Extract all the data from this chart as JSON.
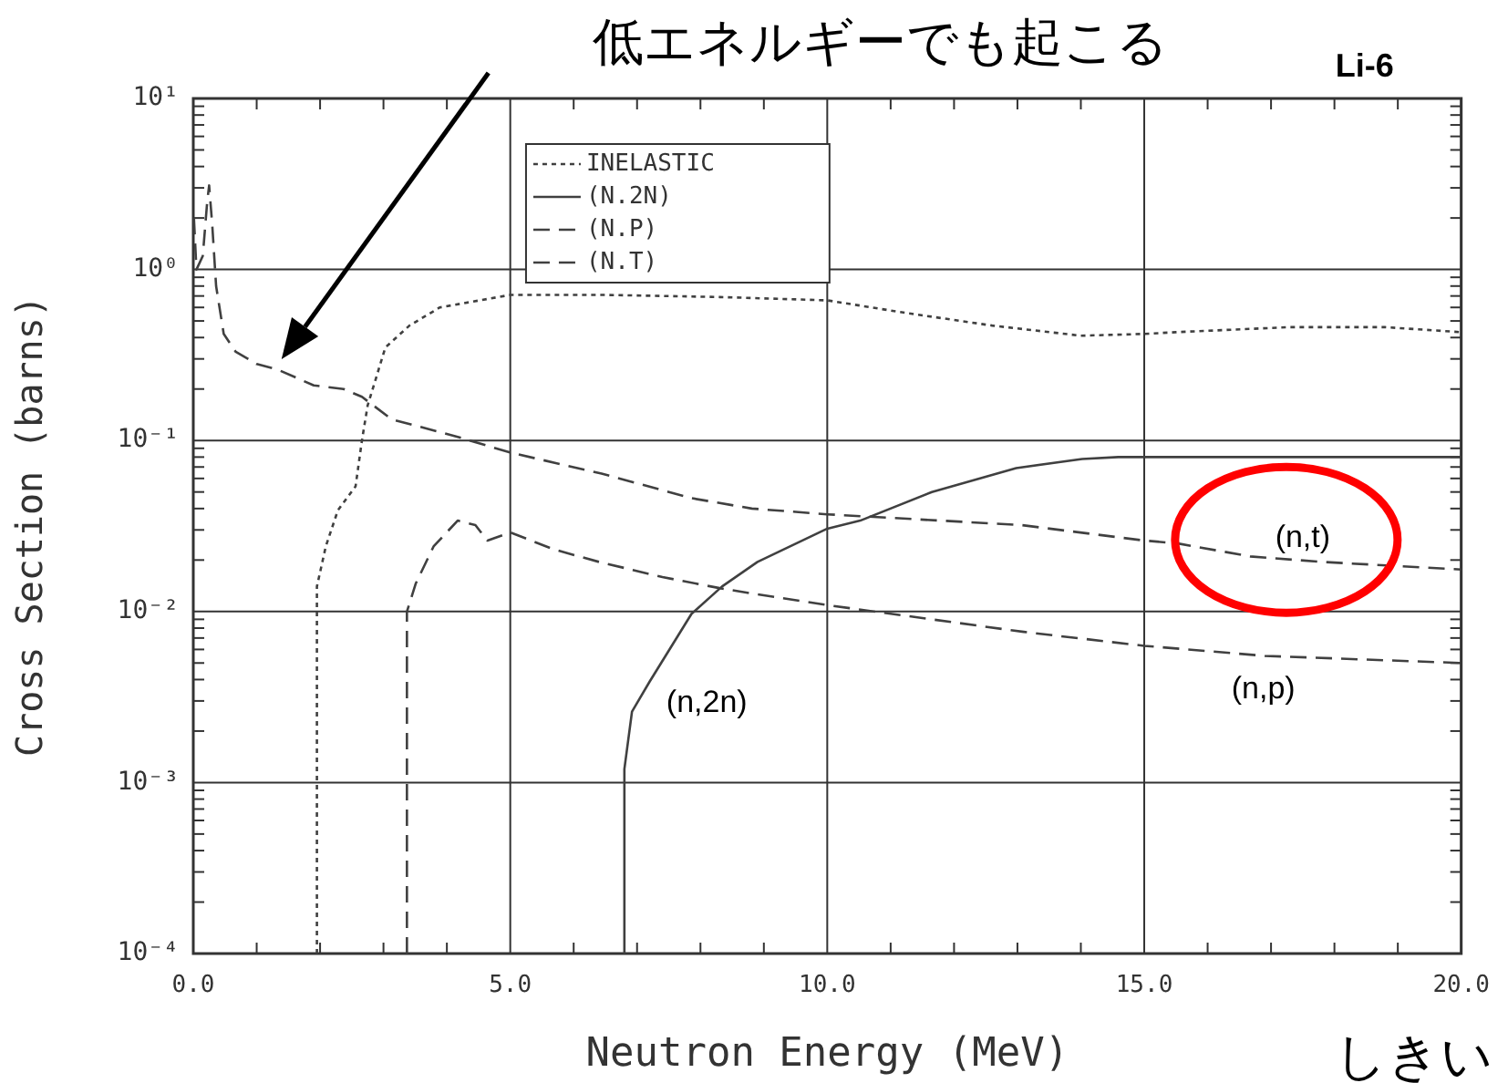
{
  "chart_data": {
    "type": "line",
    "title": "Li-6",
    "xlabel": "Neutron Energy (MeV)",
    "ylabel": "Cross Section (barns)",
    "xlim": [
      0,
      20
    ],
    "xticks": [
      {
        "value": 0,
        "label": "0.0"
      },
      {
        "value": 1,
        "label": null
      },
      {
        "value": 2,
        "label": null
      },
      {
        "value": 3,
        "label": null
      },
      {
        "value": 4,
        "label": null
      },
      {
        "value": 5,
        "label": "5.0"
      },
      {
        "value": 6,
        "label": null
      },
      {
        "value": 7,
        "label": null
      },
      {
        "value": 8,
        "label": null
      },
      {
        "value": 9,
        "label": null
      },
      {
        "value": 10,
        "label": "10.0"
      },
      {
        "value": 11,
        "label": null
      },
      {
        "value": 12,
        "label": null
      },
      {
        "value": 13,
        "label": null
      },
      {
        "value": 14,
        "label": null
      },
      {
        "value": 15,
        "label": "15.0"
      },
      {
        "value": 16,
        "label": null
      },
      {
        "value": 17,
        "label": null
      },
      {
        "value": 18,
        "label": null
      },
      {
        "value": 19,
        "label": null
      },
      {
        "value": 20,
        "label": "20.0"
      }
    ],
    "ylim": [
      0.0001,
      10
    ],
    "log": "y",
    "yticks": [
      {
        "value": 0.0001,
        "label": "10⁻⁴"
      },
      {
        "value": 0.0002,
        "label": null
      },
      {
        "value": 0.0003,
        "label": null
      },
      {
        "value": 0.0004,
        "label": null
      },
      {
        "value": 0.0005,
        "label": null
      },
      {
        "value": 0.0006,
        "label": null
      },
      {
        "value": 0.0007,
        "label": null
      },
      {
        "value": 0.0008,
        "label": null
      },
      {
        "value": 0.0009,
        "label": null
      },
      {
        "value": 0.001,
        "label": "10⁻³"
      },
      {
        "value": 0.002,
        "label": null
      },
      {
        "value": 0.003,
        "label": null
      },
      {
        "value": 0.004,
        "label": null
      },
      {
        "value": 0.005,
        "label": null
      },
      {
        "value": 0.006,
        "label": null
      },
      {
        "value": 0.007,
        "label": null
      },
      {
        "value": 0.008,
        "label": null
      },
      {
        "value": 0.009,
        "label": null
      },
      {
        "value": 0.01,
        "label": "10⁻²"
      },
      {
        "value": 0.02,
        "label": null
      },
      {
        "value": 0.03,
        "label": null
      },
      {
        "value": 0.04,
        "label": null
      },
      {
        "value": 0.05,
        "label": null
      },
      {
        "value": 0.06,
        "label": null
      },
      {
        "value": 0.07,
        "label": null
      },
      {
        "value": 0.08,
        "label": null
      },
      {
        "value": 0.09,
        "label": null
      },
      {
        "value": 0.1,
        "label": "10⁻¹"
      },
      {
        "value": 0.2,
        "label": null
      },
      {
        "value": 0.3,
        "label": null
      },
      {
        "value": 0.4,
        "label": null
      },
      {
        "value": 0.5,
        "label": null
      },
      {
        "value": 0.6,
        "label": null
      },
      {
        "value": 0.7,
        "label": null
      },
      {
        "value": 0.8,
        "label": null
      },
      {
        "value": 0.9,
        "label": null
      },
      {
        "value": 1,
        "label": "10⁰"
      },
      {
        "value": 2,
        "label": null
      },
      {
        "value": 3,
        "label": null
      },
      {
        "value": 4,
        "label": null
      },
      {
        "value": 5,
        "label": null
      },
      {
        "value": 6,
        "label": null
      },
      {
        "value": 7,
        "label": null
      },
      {
        "value": 8,
        "label": null
      },
      {
        "value": 9,
        "label": null
      },
      {
        "value": 10,
        "label": "10¹"
      }
    ],
    "grid": true,
    "legend": "top",
    "marker": "none",
    "series": [
      {
        "name": "INELASTIC",
        "color": "#404040",
        "line_style": "dotted",
        "x": [
          1.95,
          1.95,
          2.09,
          2.28,
          2.56,
          2.66,
          2.75,
          3.03,
          3.41,
          3.89,
          5.0,
          6.5,
          8.3,
          10.0,
          11.2,
          12.6,
          14.0,
          15.0,
          15.5,
          17.3,
          18.8,
          20.0
        ],
        "values": [
          0.0001,
          0.014,
          0.024,
          0.039,
          0.054,
          0.1,
          0.16,
          0.35,
          0.47,
          0.6,
          0.71,
          0.71,
          0.69,
          0.66,
          0.56,
          0.47,
          0.41,
          0.42,
          0.43,
          0.46,
          0.46,
          0.43
        ]
      },
      {
        "name": "(N.2N)",
        "color": "#404040",
        "line_style": "solid",
        "x": [
          6.8,
          6.8,
          6.92,
          7.2,
          7.86,
          8.34,
          8.9,
          10.0,
          10.52,
          11.65,
          12.98,
          14.02,
          14.59,
          20.0
        ],
        "values": [
          0.0001,
          0.0012,
          0.0026,
          0.0039,
          0.0097,
          0.014,
          0.0195,
          0.0305,
          0.034,
          0.05,
          0.069,
          0.078,
          0.08,
          0.08
        ]
      },
      {
        "name": "(N.P)",
        "color": "#404040",
        "line_style": "dashed",
        "x": [
          3.37,
          3.37,
          3.51,
          3.79,
          4.17,
          4.45,
          4.64,
          5.0,
          5.7,
          6.4,
          7.4,
          8.3,
          8.9,
          10.0,
          13.1,
          15.0,
          16.9,
          20.0
        ],
        "values": [
          0.0001,
          0.01,
          0.0146,
          0.024,
          0.034,
          0.032,
          0.026,
          0.029,
          0.023,
          0.0195,
          0.0159,
          0.0137,
          0.0126,
          0.0109,
          0.0076,
          0.0063,
          0.0055,
          0.005
        ]
      },
      {
        "name": "(N.T)",
        "color": "#404040",
        "line_style": "dashed",
        "x": [
          0.01,
          0.05,
          0.15,
          0.22,
          0.25,
          0.3,
          0.36,
          0.48,
          0.67,
          1.0,
          1.33,
          1.9,
          2.37,
          2.66,
          3.13,
          4.17,
          5.0,
          6.44,
          7.86,
          8.81,
          10.0,
          13.07,
          15.0,
          15.53,
          16.67,
          17.8,
          20.0
        ],
        "values": [
          2.0,
          1.0,
          1.2,
          2.5,
          3.1,
          1.8,
          0.8,
          0.42,
          0.33,
          0.28,
          0.26,
          0.21,
          0.2,
          0.18,
          0.133,
          0.105,
          0.085,
          0.064,
          0.046,
          0.04,
          0.037,
          0.032,
          0.026,
          0.025,
          0.021,
          0.0195,
          0.0176
        ]
      }
    ],
    "annotations": [
      "低エネルギーでも起こる",
      "(n,t)",
      "(n,2n)",
      "(n,p)",
      "しきい"
    ]
  }
}
